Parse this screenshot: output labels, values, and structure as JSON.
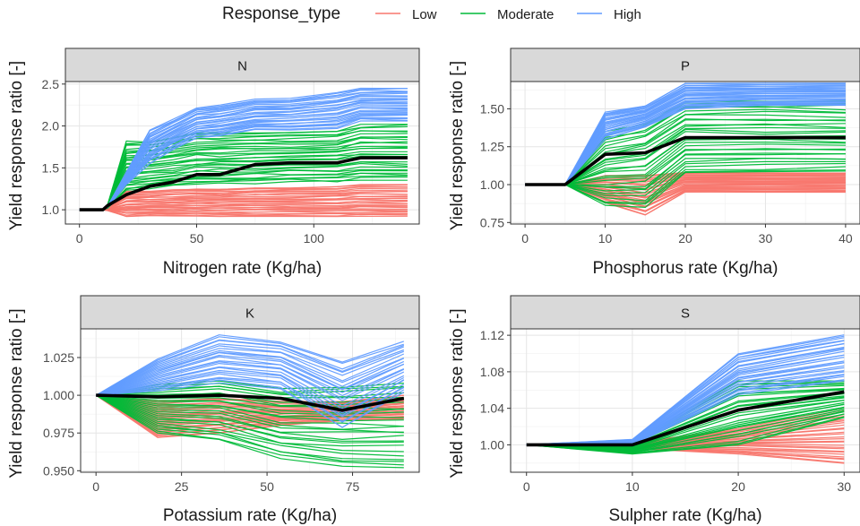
{
  "legend": {
    "title": "Response_type",
    "items": [
      {
        "key": "Low",
        "label": "Low",
        "color": "#F8766D"
      },
      {
        "key": "Moderate",
        "label": "Moderate",
        "color": "#00BA38"
      },
      {
        "key": "High",
        "label": "High",
        "color": "#619CFF"
      }
    ],
    "mean_color": "#000000"
  },
  "chart_data": [
    {
      "type": "line",
      "panel": "N",
      "xlabel": "Nitrogen rate (Kg/ha)",
      "ylabel": "Yield response ratio [-]",
      "xlim": [
        -6,
        145
      ],
      "ylim": [
        0.83,
        2.53
      ],
      "xticks": [
        0,
        50,
        100
      ],
      "xtick_labels": [
        "0",
        "50",
        "100"
      ],
      "yticks": [
        1.0,
        1.5,
        2.0,
        2.5
      ],
      "ytick_labels": [
        "1.0",
        "1.5",
        "2.0",
        "2.5"
      ],
      "x": [
        0,
        10,
        12,
        20,
        30,
        40,
        50,
        60,
        75,
        90,
        110,
        120,
        140
      ],
      "mean": [
        1.0,
        1.0,
        1.05,
        1.18,
        1.28,
        1.33,
        1.42,
        1.42,
        1.54,
        1.56,
        1.56,
        1.62,
        1.62
      ],
      "bands": [
        {
          "group": "Low",
          "lines": 30,
          "low": [
            1.0,
            1.0,
            0.99,
            0.92,
            0.93,
            0.92,
            0.92,
            0.92,
            0.92,
            0.92,
            0.92,
            0.92,
            0.92
          ],
          "high": [
            1.0,
            1.0,
            1.03,
            1.22,
            1.22,
            1.24,
            1.25,
            1.25,
            1.27,
            1.27,
            1.28,
            1.3,
            1.3
          ]
        },
        {
          "group": "Moderate",
          "lines": 30,
          "low": [
            1.0,
            1.0,
            1.02,
            1.22,
            1.25,
            1.28,
            1.3,
            1.31,
            1.31,
            1.33,
            1.33,
            1.35,
            1.35
          ],
          "high": [
            1.0,
            1.0,
            1.06,
            1.82,
            1.82,
            1.86,
            1.92,
            1.92,
            1.93,
            1.93,
            1.95,
            2.02,
            2.02
          ]
        },
        {
          "group": "High",
          "lines": 28,
          "low": [
            1.0,
            1.0,
            1.03,
            1.3,
            1.55,
            1.72,
            1.85,
            1.88,
            1.95,
            1.95,
            1.97,
            2.06,
            2.06
          ],
          "high": [
            1.0,
            1.0,
            1.04,
            1.45,
            1.95,
            2.08,
            2.22,
            2.25,
            2.32,
            2.33,
            2.4,
            2.45,
            2.45
          ]
        }
      ]
    },
    {
      "type": "line",
      "panel": "P",
      "xlabel": "Phosphorus rate (Kg/ha)",
      "ylabel": "Yield response ratio [-]",
      "xlim": [
        -1.8,
        41.8
      ],
      "ylim": [
        0.74,
        1.68
      ],
      "xticks": [
        0,
        10,
        20,
        30,
        40
      ],
      "xtick_labels": [
        "0",
        "10",
        "20",
        "30",
        "40"
      ],
      "yticks": [
        0.75,
        1.0,
        1.25,
        1.5
      ],
      "ytick_labels": [
        "0.75",
        "1.00",
        "1.25",
        "1.50"
      ],
      "x": [
        0,
        5,
        10,
        15,
        20,
        30,
        40
      ],
      "mean": [
        1.0,
        1.0,
        1.2,
        1.21,
        1.31,
        1.31,
        1.31
      ],
      "bands": [
        {
          "group": "Low",
          "lines": 30,
          "low": [
            1.0,
            1.0,
            0.88,
            0.8,
            0.95,
            0.95,
            0.95
          ],
          "high": [
            1.0,
            1.0,
            1.06,
            1.06,
            1.08,
            1.08,
            1.08
          ]
        },
        {
          "group": "Moderate",
          "lines": 30,
          "low": [
            1.0,
            1.0,
            0.85,
            0.85,
            1.08,
            1.08,
            1.08
          ],
          "high": [
            1.0,
            1.0,
            1.35,
            1.4,
            1.55,
            1.55,
            1.55
          ]
        },
        {
          "group": "High",
          "lines": 28,
          "low": [
            1.0,
            1.0,
            1.3,
            1.38,
            1.5,
            1.52,
            1.52
          ],
          "high": [
            1.0,
            1.0,
            1.48,
            1.52,
            1.67,
            1.67,
            1.67
          ]
        }
      ]
    },
    {
      "type": "line",
      "panel": "K",
      "xlabel": "Potassium rate (Kg/ha)",
      "ylabel": "Yield response ratio [-]",
      "xlim": [
        -4.5,
        94.5
      ],
      "ylim": [
        0.949,
        1.044
      ],
      "xticks": [
        0,
        25,
        50,
        75
      ],
      "xtick_labels": [
        "0",
        "25",
        "50",
        "75"
      ],
      "yticks": [
        0.95,
        0.975,
        1.0,
        1.025
      ],
      "ytick_labels": [
        "0.950",
        "0.975",
        "1.000",
        "1.025"
      ],
      "x": [
        0,
        18,
        36,
        54,
        72,
        90
      ],
      "mean": [
        1.0,
        0.999,
        1.0,
        0.998,
        0.99,
        0.998
      ],
      "bands": [
        {
          "group": "Low",
          "lines": 30,
          "low": [
            1.0,
            0.972,
            0.975,
            0.98,
            0.983,
            0.984
          ],
          "high": [
            1.0,
            0.996,
            0.998,
            0.996,
            0.996,
            1.0
          ]
        },
        {
          "group": "Moderate",
          "lines": 26,
          "low": [
            1.0,
            0.975,
            0.97,
            0.958,
            0.953,
            0.952
          ],
          "high": [
            1.0,
            1.007,
            1.01,
            1.005,
            1.006,
            1.008
          ]
        },
        {
          "group": "High",
          "lines": 24,
          "low": [
            1.0,
            1.003,
            1.008,
            1.004,
            0.978,
            1.002
          ],
          "high": [
            1.0,
            1.024,
            1.04,
            1.036,
            1.022,
            1.036
          ]
        }
      ]
    },
    {
      "type": "line",
      "panel": "S",
      "xlabel": "Sulpher rate (Kg/ha)",
      "ylabel": "Yield response ratio [-]",
      "xlim": [
        -1.5,
        31.5
      ],
      "ylim": [
        0.97,
        1.127
      ],
      "xticks": [
        0,
        10,
        20,
        30
      ],
      "xtick_labels": [
        "0",
        "10",
        "20",
        "30"
      ],
      "yticks": [
        1.0,
        1.04,
        1.08,
        1.12
      ],
      "ytick_labels": [
        "1.00",
        "1.04",
        "1.08",
        "1.12"
      ],
      "x": [
        0,
        10,
        20,
        30
      ],
      "mean": [
        1.0,
        1.0,
        1.038,
        1.058
      ],
      "bands": [
        {
          "group": "Low",
          "lines": 28,
          "low": [
            1.0,
            0.996,
            0.99,
            0.978
          ],
          "high": [
            1.0,
            1.002,
            1.018,
            1.04
          ]
        },
        {
          "group": "Moderate",
          "lines": 28,
          "low": [
            1.0,
            0.99,
            1.0,
            1.03
          ],
          "high": [
            1.0,
            1.004,
            1.07,
            1.07
          ]
        },
        {
          "group": "High",
          "lines": 26,
          "low": [
            1.0,
            1.0,
            1.055,
            1.07
          ],
          "high": [
            1.0,
            1.006,
            1.1,
            1.122
          ]
        }
      ]
    }
  ]
}
